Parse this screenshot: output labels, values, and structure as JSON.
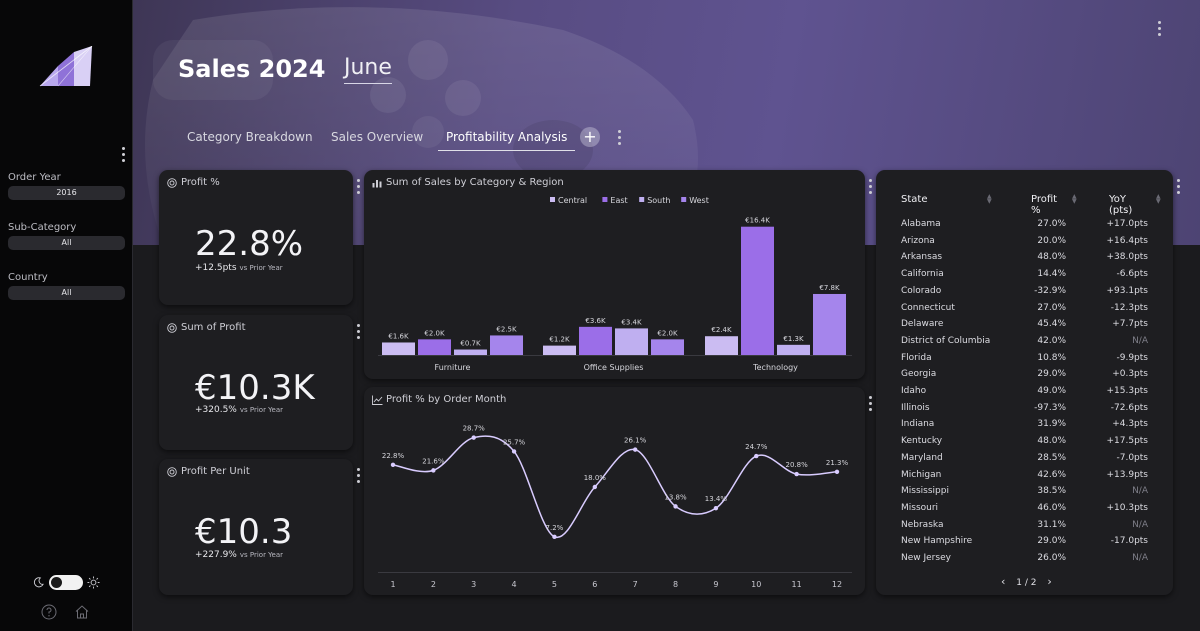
{
  "app": {
    "title": "Sales 2024",
    "month": "June"
  },
  "tabs": [
    {
      "label": "Category Breakdown",
      "active": false
    },
    {
      "label": "Sales Overview",
      "active": false
    },
    {
      "label": "Profitability Analysis",
      "active": true
    }
  ],
  "filters": [
    {
      "label": "Order Year",
      "value": "2016"
    },
    {
      "label": "Sub-Category",
      "value": "All"
    },
    {
      "label": "Country",
      "value": "All"
    }
  ],
  "kpis": [
    {
      "title": "Profit %",
      "value": "22.8%",
      "delta": "+12.5pts",
      "caption": "vs Prior Year"
    },
    {
      "title": "Sum of Profit",
      "value": "€10.3K",
      "delta": "+320.5%",
      "caption": "vs Prior Year"
    },
    {
      "title": "Profit Per Unit",
      "value": "€10.3",
      "delta": "+227.9%",
      "caption": "vs Prior Year"
    }
  ],
  "chart_data": [
    {
      "type": "bar",
      "title": "Sum of Sales by Category & Region",
      "categories": [
        "Furniture",
        "Office Supplies",
        "Technology"
      ],
      "legend_position": "top-right",
      "series": [
        {
          "name": "Central",
          "color": "#cbbcf2",
          "values": [
            1.6,
            1.2,
            2.4
          ],
          "labels": [
            "€1.6K",
            "€1.2K",
            "€2.4K"
          ]
        },
        {
          "name": "East",
          "color": "#9b6ee8",
          "values": [
            2.0,
            3.6,
            16.4
          ],
          "labels": [
            "€2.0K",
            "€3.6K",
            "€16.4K"
          ]
        },
        {
          "name": "South",
          "color": "#bfaff0",
          "values": [
            0.7,
            3.4,
            1.3
          ],
          "labels": [
            "€0.7K",
            "€3.4K",
            "€1.3K"
          ]
        },
        {
          "name": "West",
          "color": "#a585ec",
          "values": [
            2.5,
            2.0,
            7.8
          ],
          "labels": [
            "€2.5K",
            "€2.0K",
            "€7.8K"
          ]
        }
      ],
      "ylim": [
        0,
        17
      ],
      "grid": false
    },
    {
      "type": "line",
      "title": "Profit % by Order Month",
      "x": [
        1,
        2,
        3,
        4,
        5,
        6,
        7,
        8,
        9,
        10,
        11,
        12
      ],
      "values": [
        22.8,
        21.6,
        28.7,
        25.7,
        7.2,
        18.0,
        26.1,
        13.8,
        13.4,
        24.7,
        20.8,
        21.3
      ],
      "labels": [
        "22.8%",
        "21.6%",
        "28.7%",
        "25.7%",
        "7.2%",
        "18.0%",
        "26.1%",
        "13.8%",
        "13.4%",
        "24.7%",
        "20.8%",
        "21.3%"
      ],
      "ylim": [
        5,
        31
      ],
      "line_color": "#d9ccff",
      "grid": false
    }
  ],
  "table": {
    "headers": [
      "State",
      "Profit %",
      "YoY (pts)"
    ],
    "rows": [
      [
        "Alabama",
        "27.0%",
        "+17.0pts"
      ],
      [
        "Arizona",
        "20.0%",
        "+16.4pts"
      ],
      [
        "Arkansas",
        "48.0%",
        "+38.0pts"
      ],
      [
        "California",
        "14.4%",
        "-6.6pts"
      ],
      [
        "Colorado",
        "-32.9%",
        "+93.1pts"
      ],
      [
        "Connecticut",
        "27.0%",
        "-12.3pts"
      ],
      [
        "Delaware",
        "45.4%",
        "+7.7pts"
      ],
      [
        "District of Columbia",
        "42.0%",
        "N/A"
      ],
      [
        "Florida",
        "10.8%",
        "-9.9pts"
      ],
      [
        "Georgia",
        "29.0%",
        "+0.3pts"
      ],
      [
        "Idaho",
        "49.0%",
        "+15.3pts"
      ],
      [
        "Illinois",
        "-97.3%",
        "-72.6pts"
      ],
      [
        "Indiana",
        "31.9%",
        "+4.3pts"
      ],
      [
        "Kentucky",
        "48.0%",
        "+17.5pts"
      ],
      [
        "Maryland",
        "28.5%",
        "-7.0pts"
      ],
      [
        "Michigan",
        "42.6%",
        "+13.9pts"
      ],
      [
        "Mississippi",
        "38.5%",
        "N/A"
      ],
      [
        "Missouri",
        "46.0%",
        "+10.3pts"
      ],
      [
        "Nebraska",
        "31.1%",
        "N/A"
      ],
      [
        "New Hampshire",
        "29.0%",
        "-17.0pts"
      ],
      [
        "New Jersey",
        "26.0%",
        "N/A"
      ]
    ],
    "page": "1 / 2"
  },
  "colors": {
    "accent": "#9b6ee8",
    "card": "#1e1e21",
    "sidebar": "#070708"
  }
}
